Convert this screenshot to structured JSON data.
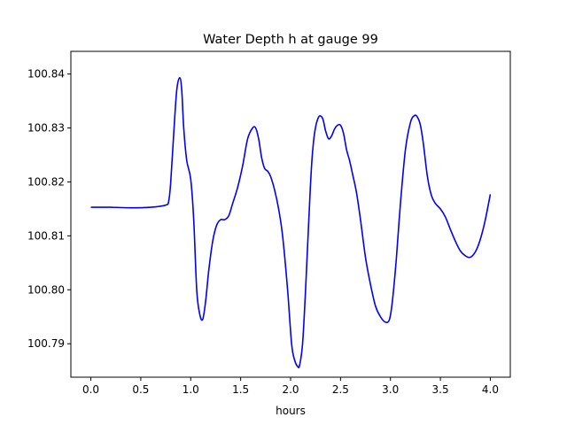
{
  "chart_data": {
    "type": "line",
    "title": "Water Depth h at gauge 99",
    "xlabel": "hours",
    "ylabel": "",
    "xlim": [
      -0.2,
      4.2
    ],
    "ylim": [
      100.7838,
      100.8442
    ],
    "grid": false,
    "xticks": [
      0.0,
      0.5,
      1.0,
      1.5,
      2.0,
      2.5,
      3.0,
      3.5,
      4.0
    ],
    "xtick_labels": [
      "0.0",
      "0.5",
      "1.0",
      "1.5",
      "2.0",
      "2.5",
      "3.0",
      "3.5",
      "4.0"
    ],
    "yticks": [
      100.79,
      100.8,
      100.81,
      100.82,
      100.83,
      100.84
    ],
    "ytick_labels": [
      "100.79",
      "100.80",
      "100.81",
      "100.82",
      "100.83",
      "100.84"
    ],
    "series": [
      {
        "color": "#0000ff",
        "x": [
          0.0,
          0.2,
          0.4,
          0.6,
          0.75,
          0.78,
          0.8,
          0.83,
          0.86,
          0.89,
          0.91,
          0.93,
          0.96,
          1.0,
          1.03,
          1.06,
          1.09,
          1.12,
          1.15,
          1.18,
          1.22,
          1.26,
          1.3,
          1.34,
          1.38,
          1.42,
          1.47,
          1.52,
          1.57,
          1.62,
          1.65,
          1.68,
          1.71,
          1.74,
          1.77,
          1.8,
          1.84,
          1.88,
          1.92,
          1.97,
          2.01,
          2.04,
          2.07,
          2.09,
          2.12,
          2.15,
          2.18,
          2.21,
          2.24,
          2.28,
          2.32,
          2.35,
          2.38,
          2.41,
          2.44,
          2.47,
          2.5,
          2.53,
          2.56,
          2.59,
          2.62,
          2.66,
          2.7,
          2.75,
          2.8,
          2.85,
          2.9,
          2.95,
          2.99,
          3.02,
          3.06,
          3.1,
          3.15,
          3.2,
          3.24,
          3.27,
          3.3,
          3.33,
          3.37,
          3.41,
          3.45,
          3.5,
          3.55,
          3.6,
          3.65,
          3.7,
          3.75,
          3.79,
          3.83,
          3.87,
          3.91,
          3.95,
          4.0
        ],
        "y": [
          100.8153,
          100.8153,
          100.8152,
          100.8153,
          100.8157,
          100.8165,
          100.82,
          100.829,
          100.837,
          100.8393,
          100.837,
          100.83,
          100.824,
          100.8205,
          100.813,
          100.8,
          100.7955,
          100.7945,
          100.798,
          100.8035,
          100.809,
          100.812,
          100.813,
          100.813,
          100.8137,
          100.816,
          100.819,
          100.823,
          100.828,
          100.83,
          100.83,
          100.828,
          100.8245,
          100.8225,
          100.822,
          100.821,
          100.8185,
          100.815,
          100.81,
          100.8,
          100.79,
          100.787,
          100.7858,
          100.786,
          100.79,
          100.8,
          100.812,
          100.823,
          100.829,
          100.832,
          100.8318,
          100.8295,
          100.828,
          100.8285,
          100.8298,
          100.8305,
          100.8305,
          100.829,
          100.826,
          100.824,
          100.8215,
          100.818,
          100.813,
          100.806,
          100.801,
          100.797,
          100.795,
          100.794,
          100.7945,
          100.798,
          100.806,
          100.816,
          100.826,
          100.831,
          100.8323,
          100.832,
          100.8305,
          100.827,
          100.821,
          100.8175,
          100.816,
          100.815,
          100.8135,
          100.8112,
          100.809,
          100.8072,
          100.8063,
          100.806,
          100.8065,
          100.8078,
          100.81,
          100.813,
          100.8177
        ]
      }
    ]
  }
}
